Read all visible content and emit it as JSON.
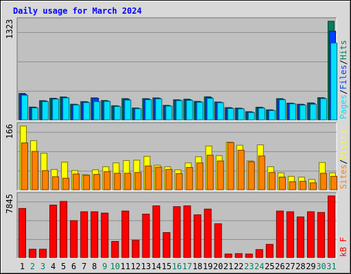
{
  "chart_data": {
    "title": "Daily usage for March 2024",
    "type": "bar",
    "days": [
      "1",
      "2",
      "3",
      "4",
      "5",
      "6",
      "7",
      "8",
      "9",
      "10",
      "11",
      "12",
      "13",
      "14",
      "15",
      "16",
      "17",
      "18",
      "19",
      "20",
      "21",
      "22",
      "23",
      "24",
      "25",
      "26",
      "27",
      "28",
      "29",
      "30",
      "31"
    ],
    "weekend_days": [
      2,
      3,
      9,
      10,
      16,
      17,
      23,
      24,
      30,
      31
    ],
    "colors": {
      "hits": "#00805c",
      "files": "#0040ff",
      "pages": "#00e0ff",
      "visits": "#ffff00",
      "sites": "#ff8000",
      "kbytes": "#ff0000",
      "title": "#0000ff",
      "weekday_label": "#000000",
      "weekend_label": "#00805c",
      "plot_bg": "#c0c0c0",
      "frame_bg": "#d8d8d8"
    },
    "panels": [
      {
        "id": "hits",
        "max_label": "1323",
        "ymax": 1323,
        "legend": [
          {
            "text": "Pages",
            "color": "#00e0ff"
          },
          {
            "text": "/",
            "color": "#000000"
          },
          {
            "text": "Files",
            "color": "#0040ff"
          },
          {
            "text": "/",
            "color": "#000000"
          },
          {
            "text": "Hits",
            "color": "#00805c"
          }
        ],
        "series": [
          {
            "name": "Hits",
            "color": "#00805c",
            "values": [
              355,
              172,
              258,
              290,
              308,
              210,
              245,
              295,
              260,
              190,
              285,
              160,
              285,
              295,
              195,
              270,
              278,
              248,
              310,
              240,
              165,
              158,
              110,
              170,
              135,
              285,
              225,
              210,
              228,
              298,
              1323
            ]
          },
          {
            "name": "Files",
            "color": "#0040ff",
            "values": [
              345,
              167,
              252,
              285,
              300,
              205,
              240,
              290,
              253,
              185,
              278,
              155,
              278,
              290,
              190,
              264,
              270,
              242,
              302,
              235,
              160,
              153,
              105,
              165,
              130,
              278,
              220,
              205,
              222,
              292,
              1190
            ]
          },
          {
            "name": "Pages",
            "color": "#00e0ff",
            "values": [
              330,
              160,
              245,
              278,
              295,
              200,
              232,
              245,
              248,
              180,
              265,
              150,
              270,
              282,
              185,
              258,
              262,
              236,
              288,
              230,
              152,
              148,
              98,
              158,
              124,
              270,
              215,
              198,
              210,
              285,
              1030
            ]
          }
        ]
      },
      {
        "id": "visits",
        "max_label": "166",
        "ymax": 166,
        "legend": [
          {
            "text": "Sites",
            "color": "#ff8000"
          },
          {
            "text": "/",
            "color": "#000000"
          },
          {
            "text": "Visits",
            "color": "#ffff00"
          }
        ],
        "series": [
          {
            "name": "Visits",
            "color": "#ffff00",
            "values": [
              166,
              128,
              95,
              53,
              72,
              50,
              39,
              52,
              60,
              70,
              76,
              77,
              87,
              64,
              60,
              52,
              70,
              86,
              114,
              89,
              124,
              116,
              75,
              117,
              60,
              44,
              35,
              33,
              27,
              71,
              44
            ]
          },
          {
            "name": "Sites",
            "color": "#ff8000",
            "values": [
              122,
              100,
              50,
              34,
              30,
              41,
              38,
              40,
              47,
              43,
              43,
              45,
              62,
              59,
              53,
              42,
              58,
              70,
              90,
              75,
              123,
              103,
              73,
              88,
              45,
              33,
              21,
              22,
              18,
              43,
              35
            ]
          }
        ]
      },
      {
        "id": "kbytes",
        "max_label": "7845",
        "ymax": 7845,
        "legend": [
          {
            "text": "kB F",
            "color": "#ff0000"
          }
        ],
        "series": [
          {
            "name": "kB F",
            "color": "#ff0000",
            "values": [
              6250,
              1060,
              1060,
              6680,
              7140,
              4700,
              5830,
              5830,
              5660,
              2050,
              5920,
              2200,
              5530,
              6580,
              3180,
              6480,
              6580,
              5440,
              6170,
              4300,
              450,
              500,
              450,
              1020,
              1680,
              5920,
              5830,
              5170,
              5830,
              5740,
              7845
            ]
          }
        ]
      }
    ]
  }
}
